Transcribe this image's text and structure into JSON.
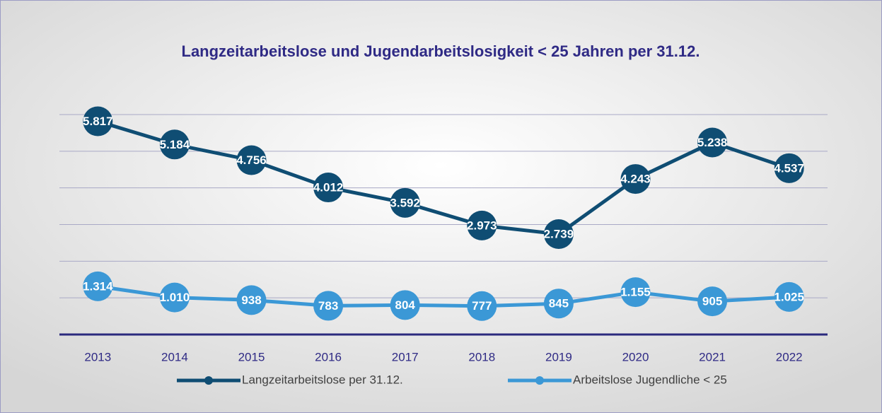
{
  "chart_data": {
    "type": "line",
    "title": "Langzeitarbeitslose und Jugendarbeitslosigkeit < 25 Jahren per 31.12.",
    "categories": [
      "2013",
      "2014",
      "2015",
      "2016",
      "2017",
      "2018",
      "2019",
      "2020",
      "2021",
      "2022"
    ],
    "series": [
      {
        "name": "Langzeitarbeitslose per 31.12.",
        "color": "#0f4d73",
        "values": [
          5817,
          5184,
          4756,
          4012,
          3592,
          2973,
          2739,
          4243,
          5238,
          4537
        ],
        "value_labels": [
          "5.817",
          "5.184",
          "4.756",
          "4.012",
          "3.592",
          "2.973",
          "2.739",
          "4.243",
          "5.238",
          "4.537"
        ]
      },
      {
        "name": "Arbeitslose Jugendliche < 25",
        "color": "#3b98d6",
        "values": [
          1314,
          1010,
          938,
          783,
          804,
          777,
          845,
          1155,
          905,
          1025
        ],
        "value_labels": [
          "1.314",
          "1.010",
          "938",
          "783",
          "804",
          "777",
          "845",
          "1.155",
          "905",
          "1.025"
        ]
      }
    ],
    "ylim": [
      0,
      6000
    ],
    "yticks": [
      0,
      1000,
      2000,
      3000,
      4000,
      5000,
      6000
    ],
    "grid": true,
    "legend": "bottom"
  }
}
